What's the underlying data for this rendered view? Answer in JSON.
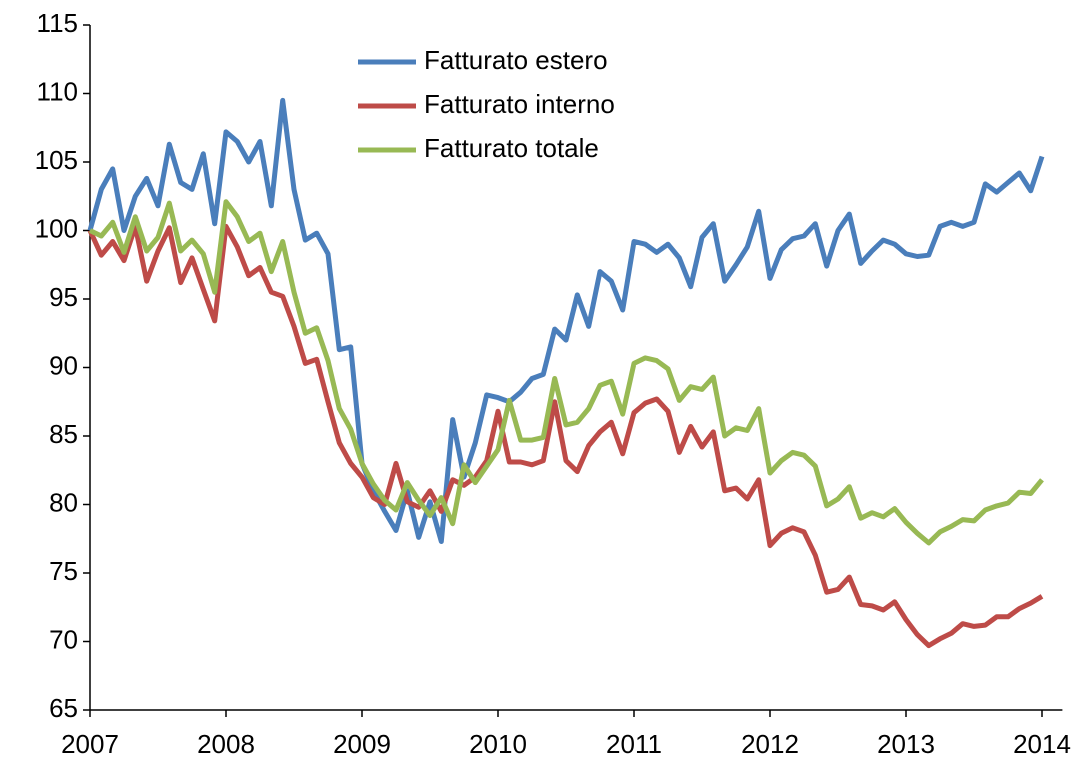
{
  "chart_data": {
    "type": "line",
    "x": [
      2007.0,
      2007.083,
      2007.167,
      2007.25,
      2007.333,
      2007.417,
      2007.5,
      2007.583,
      2007.667,
      2007.75,
      2007.833,
      2007.917,
      2008.0,
      2008.083,
      2008.167,
      2008.25,
      2008.333,
      2008.417,
      2008.5,
      2008.583,
      2008.667,
      2008.75,
      2008.833,
      2008.917,
      2009.0,
      2009.083,
      2009.167,
      2009.25,
      2009.333,
      2009.417,
      2009.5,
      2009.583,
      2009.667,
      2009.75,
      2009.833,
      2009.917,
      2010.0,
      2010.083,
      2010.167,
      2010.25,
      2010.333,
      2010.417,
      2010.5,
      2010.583,
      2010.667,
      2010.75,
      2010.833,
      2010.917,
      2011.0,
      2011.083,
      2011.167,
      2011.25,
      2011.333,
      2011.417,
      2011.5,
      2011.583,
      2011.667,
      2011.75,
      2011.833,
      2011.917,
      2012.0,
      2012.083,
      2012.167,
      2012.25,
      2012.333,
      2012.417,
      2012.5,
      2012.583,
      2012.667,
      2012.75,
      2012.833,
      2012.917,
      2013.0,
      2013.083,
      2013.167,
      2013.25,
      2013.333,
      2013.417,
      2013.5,
      2013.583,
      2013.667,
      2013.75,
      2013.833,
      2013.917,
      2014.0
    ],
    "series": [
      {
        "name": "Fatturato estero",
        "color": "#4a7ebb",
        "values": [
          100,
          103,
          104.5,
          100,
          102.5,
          103.8,
          101.8,
          106.3,
          103.5,
          103,
          105.6,
          100.5,
          107.2,
          106.5,
          105,
          106.5,
          101.8,
          109.5,
          103,
          99.3,
          99.8,
          98.3,
          91.3,
          91.5,
          83,
          81,
          79.5,
          78.1,
          81,
          77.6,
          80.2,
          77.3,
          86.2,
          82,
          84.5,
          88,
          87.8,
          87.5,
          88.2,
          89.2,
          89.5,
          92.8,
          92,
          95.3,
          93,
          97,
          96.3,
          94.2,
          99.2,
          99,
          98.4,
          99,
          98,
          95.9,
          99.5,
          100.5,
          96.3,
          97.5,
          98.8,
          101.4,
          96.5,
          98.6,
          99.4,
          99.6,
          100.5,
          97.4,
          100,
          101.2,
          97.6,
          98.5,
          99.3,
          99,
          98.3,
          98.1,
          98.2,
          100.3,
          100.6,
          100.3,
          100.6,
          103.4,
          102.8,
          103.5,
          104.2,
          102.9,
          105.4
        ]
      },
      {
        "name": "Fatturato interno",
        "color": "#be4b48",
        "values": [
          100,
          98.2,
          99.2,
          97.8,
          100.3,
          96.3,
          98.5,
          100.2,
          96.2,
          98,
          95.7,
          93.4,
          100.3,
          98.8,
          96.7,
          97.3,
          95.5,
          95.2,
          93,
          90.3,
          90.6,
          87.5,
          84.5,
          83,
          82,
          80.5,
          80,
          83,
          80.2,
          79.8,
          81,
          79.5,
          81.8,
          81.4,
          82,
          83.2,
          86.8,
          83.1,
          83.1,
          82.9,
          83.2,
          87.5,
          83.2,
          82.4,
          84.3,
          85.3,
          86,
          83.7,
          86.7,
          87.4,
          87.7,
          86.8,
          83.8,
          85.7,
          84.2,
          85.3,
          81,
          81.2,
          80.4,
          81.8,
          77,
          77.9,
          78.3,
          78,
          76.3,
          73.6,
          73.8,
          74.7,
          72.7,
          72.6,
          72.3,
          72.9,
          71.6,
          70.5,
          69.7,
          70.2,
          70.6,
          71.3,
          71.1,
          71.2,
          71.8,
          71.8,
          72.4,
          72.8,
          73.3
        ]
      },
      {
        "name": "Fatturato totale",
        "color": "#98b954",
        "values": [
          100,
          99.6,
          100.6,
          98.4,
          101,
          98.5,
          99.5,
          102,
          98.5,
          99.3,
          98.3,
          95.5,
          102.1,
          101,
          99.2,
          99.8,
          97,
          99.2,
          95.5,
          92.5,
          92.9,
          90.5,
          87,
          85.5,
          83,
          81.5,
          80.3,
          79.6,
          81.6,
          80.3,
          79.2,
          80.5,
          78.6,
          82.9,
          81.6,
          82.8,
          84,
          87.6,
          84.7,
          84.7,
          84.9,
          89.2,
          85.8,
          86,
          87,
          88.7,
          89,
          86.6,
          90.3,
          90.7,
          90.5,
          89.9,
          87.6,
          88.6,
          88.4,
          89.3,
          85,
          85.6,
          85.4,
          87,
          82.3,
          83.2,
          83.8,
          83.6,
          82.8,
          79.9,
          80.4,
          81.3,
          79,
          79.4,
          79.1,
          79.7,
          78.7,
          77.9,
          77.2,
          78,
          78.4,
          78.9,
          78.8,
          79.6,
          79.9,
          80.1,
          80.9,
          80.8,
          81.8
        ]
      }
    ],
    "xlim": [
      2007,
      2014.15
    ],
    "xticks": [
      2007,
      2008,
      2009,
      2010,
      2011,
      2012,
      2013,
      2014
    ],
    "ylim": [
      65,
      115
    ],
    "yticks": [
      65,
      70,
      75,
      80,
      85,
      90,
      95,
      100,
      105,
      110,
      115
    ],
    "legend": "top"
  }
}
